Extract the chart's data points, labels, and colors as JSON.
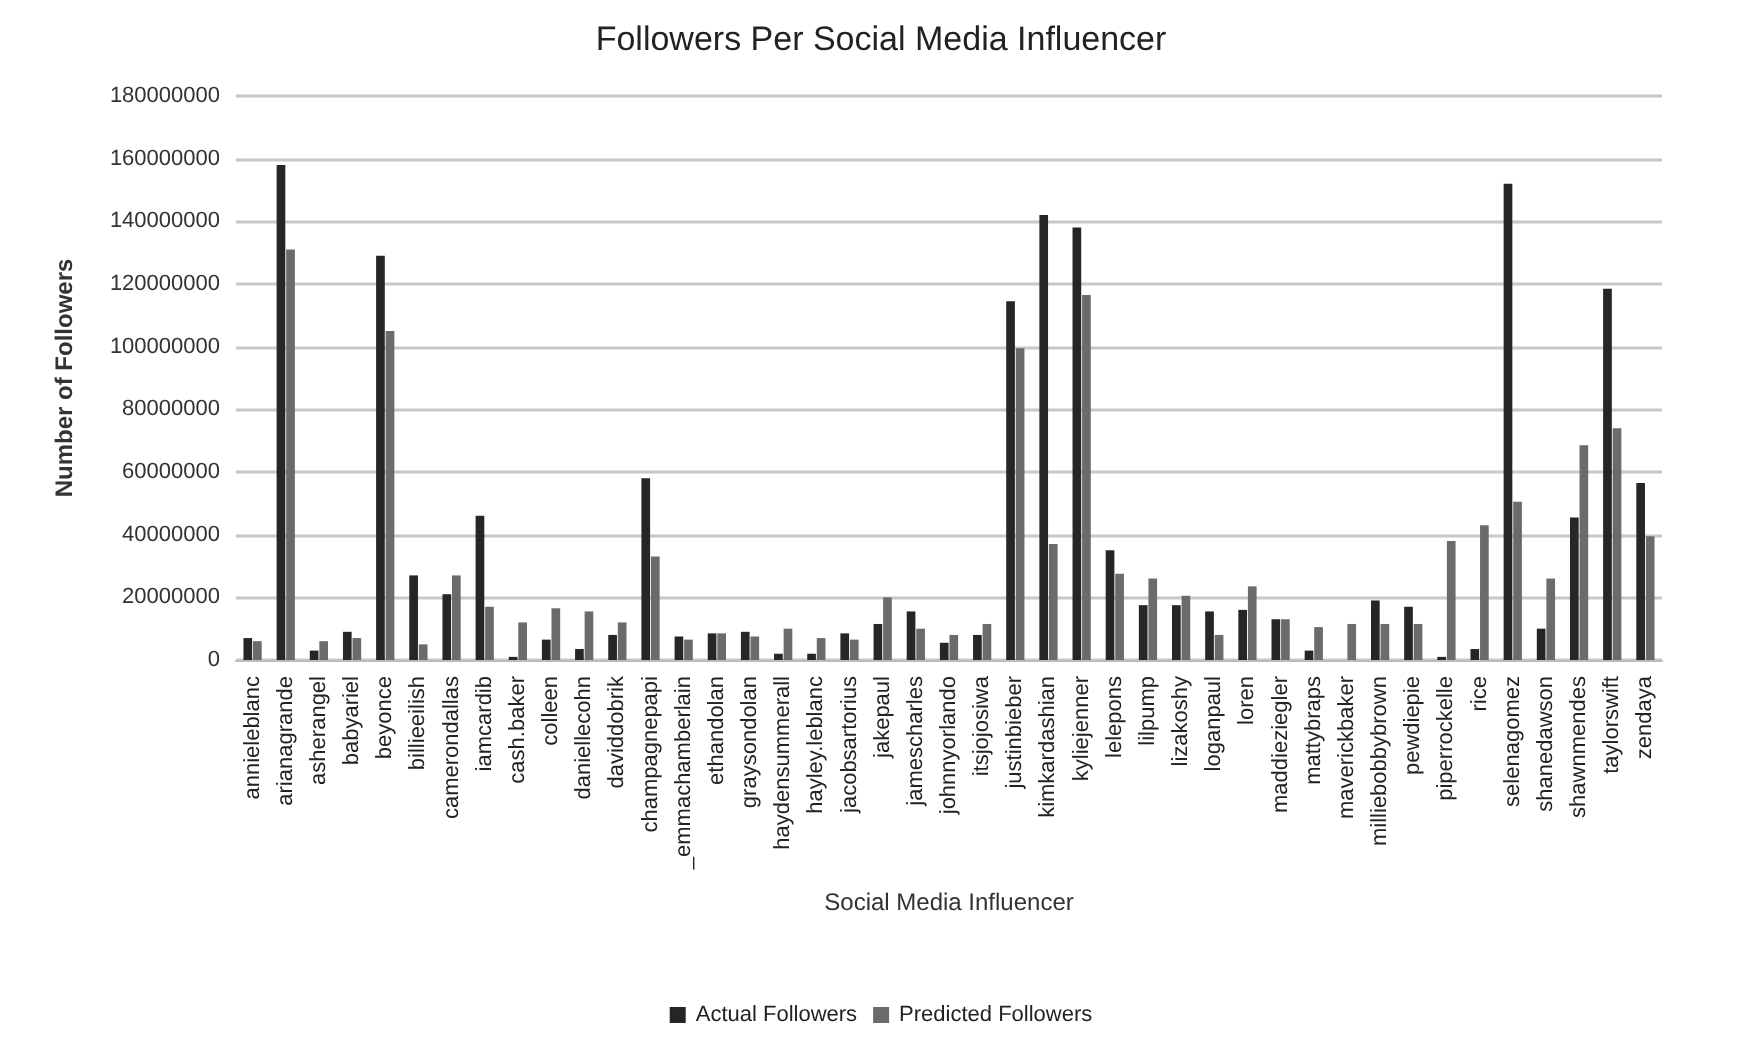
{
  "chart_data": {
    "type": "bar",
    "title": "Followers Per Social Media Influencer",
    "xlabel": "Social Media Influencer",
    "ylabel": "Number of Followers",
    "categories": [
      "annieleblanc",
      "arianagrande",
      "asherangel",
      "babyariel",
      "beyonce",
      "billieeilish",
      "camerondallas",
      "iamcardib",
      "cash.baker",
      "colleen",
      "daniellecohn",
      "daviddobrik",
      "champagnepapi",
      "_emmachamberlain",
      "ethandolan",
      "graysondolan",
      "haydensummerall",
      "hayley.leblanc",
      "jacobsartorius",
      "jakepaul",
      "jamescharles",
      "johnnyorlando",
      "itsjojosiwa",
      "justinbieber",
      "kimkardashian",
      "kyliejenner",
      "lelepons",
      "lilpump",
      "lizakoshy",
      "loganpaul",
      "loren",
      "maddieziegler",
      "mattybraps",
      "maverickbaker",
      "milliebobbybrown",
      "pewdiepie",
      "piperrockelle",
      "rice",
      "selenagomez",
      "shanedawson",
      "shawnmendes",
      "taylorswift",
      "zendaya"
    ],
    "series": [
      {
        "name": "Actual Followers",
        "color": "#262626",
        "values": [
          7000000,
          158000000,
          3000000,
          9000000,
          129000000,
          27000000,
          21000000,
          46000000,
          1000000,
          6500000,
          3500000,
          8000000,
          58000000,
          7500000,
          8500000,
          9000000,
          2000000,
          2000000,
          8500000,
          11500000,
          15500000,
          5500000,
          8000000,
          114500000,
          142000000,
          138000000,
          35000000,
          17500000,
          17500000,
          15500000,
          16000000,
          13000000,
          3000000,
          0,
          19000000,
          17000000,
          1000000,
          3500000,
          152000000,
          10000000,
          45500000,
          118500000,
          56500000
        ]
      },
      {
        "name": "Predicted Followers",
        "color": "#6b6b6b",
        "values": [
          6000000,
          131000000,
          6000000,
          7000000,
          105000000,
          5000000,
          27000000,
          17000000,
          12000000,
          16500000,
          15500000,
          12000000,
          33000000,
          6500000,
          8500000,
          7500000,
          10000000,
          7000000,
          6500000,
          20000000,
          10000000,
          8000000,
          11500000,
          99500000,
          37000000,
          116500000,
          27500000,
          26000000,
          20500000,
          8000000,
          23500000,
          13000000,
          10500000,
          11500000,
          11500000,
          11500000,
          38000000,
          43000000,
          50500000,
          26000000,
          68500000,
          74000000,
          39500000
        ]
      }
    ],
    "ylim": [
      0,
      180000000
    ],
    "yticks": [
      0,
      20000000,
      40000000,
      60000000,
      80000000,
      100000000,
      120000000,
      140000000,
      160000000,
      180000000
    ],
    "grid": "y",
    "legend": "bottom"
  }
}
